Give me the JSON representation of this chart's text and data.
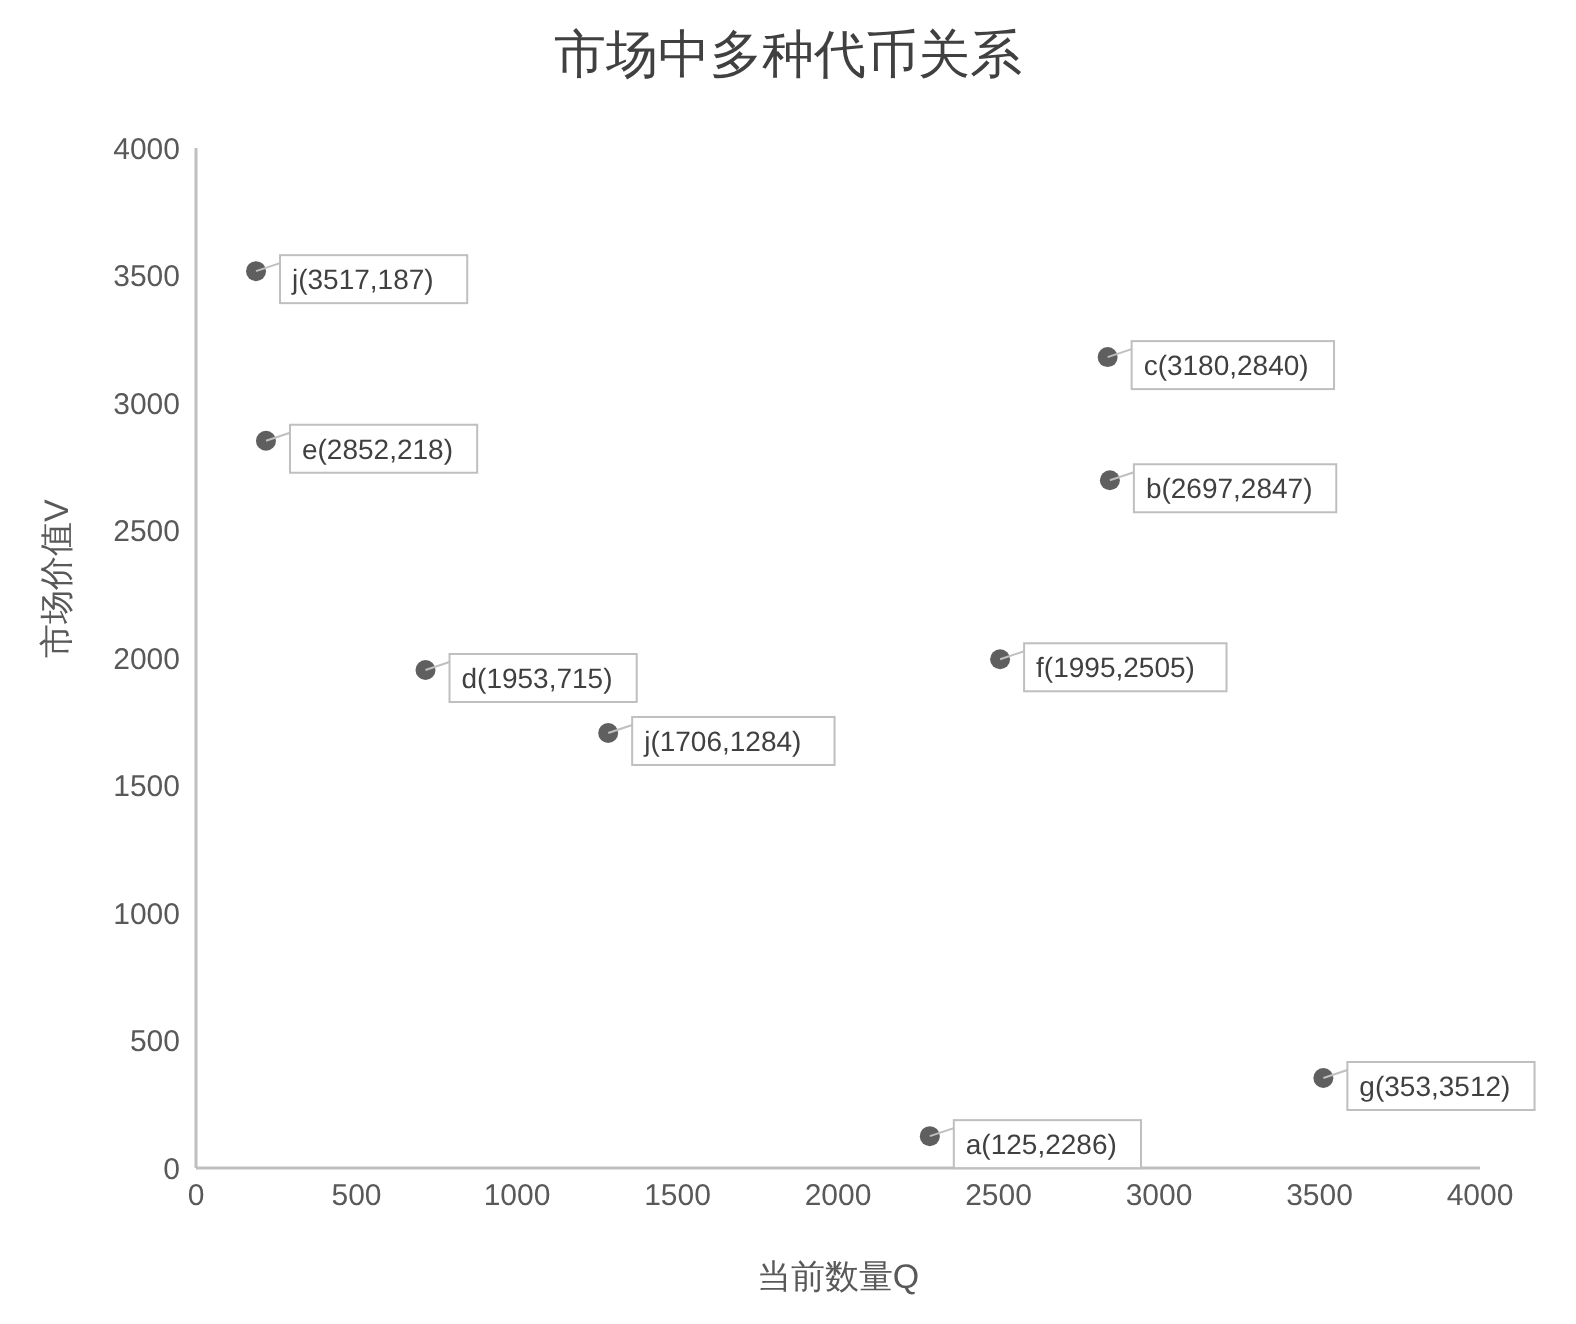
{
  "chart_data": {
    "type": "scatter",
    "title": "市场中多种代币关系",
    "xlabel": "当前数量Q",
    "ylabel": "市场价值V",
    "x": [
      187,
      218,
      715,
      1284,
      2505,
      2840,
      2847,
      2286,
      3512
    ],
    "values": [
      3517,
      2852,
      1953,
      1706,
      1995,
      3180,
      2697,
      125,
      353
    ],
    "value_labels": [
      "j(3517,187)",
      "e(2852,218)",
      "d(1953,715)",
      "j(1706,1284)",
      "f(1995,2505)",
      "c(3180,2840)",
      "b(2697,2847)",
      "a(125,2286)",
      "g(353,3512)"
    ],
    "color": "#5f5f5f",
    "marker": "circle",
    "grid": false,
    "legend": false,
    "xlim": [
      0,
      4000
    ],
    "xticks": [
      0,
      500,
      1000,
      1500,
      2000,
      2500,
      3000,
      3500,
      4000
    ],
    "ylim": [
      0,
      4000
    ],
    "yticks": [
      0,
      500,
      1000,
      1500,
      2000,
      2500,
      3000,
      3500,
      4000
    ]
  }
}
